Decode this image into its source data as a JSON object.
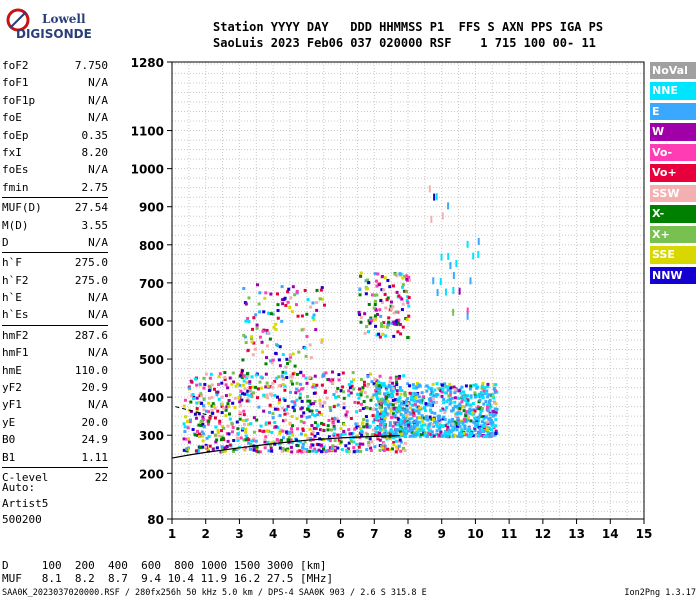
{
  "logo": {
    "top": "Lowell",
    "bottom": "DIGISONDE"
  },
  "header": {
    "line1": "Station YYYY DAY   DDD HHMMSS P1  FFS S AXN PPS IGA PS",
    "line2": "SaoLuis 2023 Feb06 037 020000 RSF    1 715 100 00- 11"
  },
  "params": [
    {
      "label": "foF2",
      "value": "7.750"
    },
    {
      "label": "foF1",
      "value": "N/A"
    },
    {
      "label": "foF1p",
      "value": "N/A"
    },
    {
      "label": "foE",
      "value": "N/A"
    },
    {
      "label": "foEp",
      "value": "0.35"
    },
    {
      "label": "fxI",
      "value": "8.20"
    },
    {
      "label": "foEs",
      "value": "N/A"
    },
    {
      "label": "fmin",
      "value": "2.75"
    },
    {
      "label": "MUF(D)",
      "value": "27.54"
    },
    {
      "label": "M(D)",
      "value": "3.55"
    },
    {
      "label": "D",
      "value": "N/A"
    },
    {
      "label": "h`F",
      "value": "275.0"
    },
    {
      "label": "h`F2",
      "value": "275.0"
    },
    {
      "label": "h`E",
      "value": "N/A"
    },
    {
      "label": "h`Es",
      "value": "N/A"
    },
    {
      "label": "hmF2",
      "value": "287.6"
    },
    {
      "label": "hmF1",
      "value": "N/A"
    },
    {
      "label": "hmE",
      "value": "110.0"
    },
    {
      "label": "yF2",
      "value": "20.9"
    },
    {
      "label": "yF1",
      "value": "N/A"
    },
    {
      "label": "yE",
      "value": "20.0"
    },
    {
      "label": "B0",
      "value": "24.9"
    },
    {
      "label": "B1",
      "value": "1.11"
    },
    {
      "label": "C-level",
      "value": "22"
    }
  ],
  "auto": {
    "line1": "Auto:",
    "line2": "Artist5",
    "line3": "500200"
  },
  "bottom": {
    "dline": "D     100  200  400  600  800 1000 1500 3000 [km]",
    "mufline": "MUF   8.1  8.2  8.7  9.4 10.4 11.9 16.2 27.5 [MHz]"
  },
  "footer": {
    "left": "SAA0K_2023037020000.RSF / 280fx256h 50 kHz 5.0 km / DPS-4 SAA0K 903 / 2.6 S 315.8 E",
    "right": "Ion2Png 1.3.17"
  },
  "legend": [
    {
      "label": "NoVal",
      "color": "#a0a0a0"
    },
    {
      "label": "NNE",
      "color": "#00e5ff"
    },
    {
      "label": "E",
      "color": "#3aa8ff"
    },
    {
      "label": "W",
      "color": "#a000a8"
    },
    {
      "label": "Vo-",
      "color": "#ff3cb4"
    },
    {
      "label": "Vo+",
      "color": "#e8003c"
    },
    {
      "label": "SSW",
      "color": "#f4b0b0"
    },
    {
      "label": "X-",
      "color": "#008000"
    },
    {
      "label": "X+",
      "color": "#78c050"
    },
    {
      "label": "SSE",
      "color": "#d8d800"
    },
    {
      "label": "NNW",
      "color": "#1400d0"
    }
  ],
  "chart_data": {
    "type": "scatter",
    "xlabel": "",
    "ylabel": "",
    "xlim": [
      1,
      15
    ],
    "ylim": [
      80,
      1280
    ],
    "x_ticks": [
      1,
      2,
      3,
      4,
      5,
      6,
      7,
      8,
      9,
      10,
      11,
      12,
      13,
      14,
      15
    ],
    "y_ticks": [
      80,
      200,
      300,
      400,
      500,
      600,
      700,
      800,
      900,
      1000,
      1100,
      1280
    ],
    "grid": true,
    "grid_x_step": 0.5,
    "grid_y_step": 25,
    "trace_curve": {
      "x": [
        1.0,
        1.5,
        2.0,
        3.0,
        4.0,
        5.0,
        6.0,
        7.0,
        7.75
      ],
      "y": [
        240,
        248,
        255,
        267,
        278,
        287,
        293,
        297,
        299
      ]
    },
    "clusters": [
      {
        "x_range": [
          1.3,
          7.9
        ],
        "y_range": [
          260,
          470
        ],
        "density": "high"
      },
      {
        "x_range": [
          7.0,
          10.6
        ],
        "y_range": [
          300,
          440
        ],
        "density": "high"
      },
      {
        "x_range": [
          3.0,
          5.5
        ],
        "y_range": [
          450,
          700
        ],
        "density": "low"
      },
      {
        "x_range": [
          6.5,
          8.0
        ],
        "y_range": [
          560,
          730
        ],
        "density": "low"
      },
      {
        "x_range": [
          8.6,
          10.1
        ],
        "y_range": [
          620,
          960
        ],
        "density": "sparse"
      }
    ]
  }
}
